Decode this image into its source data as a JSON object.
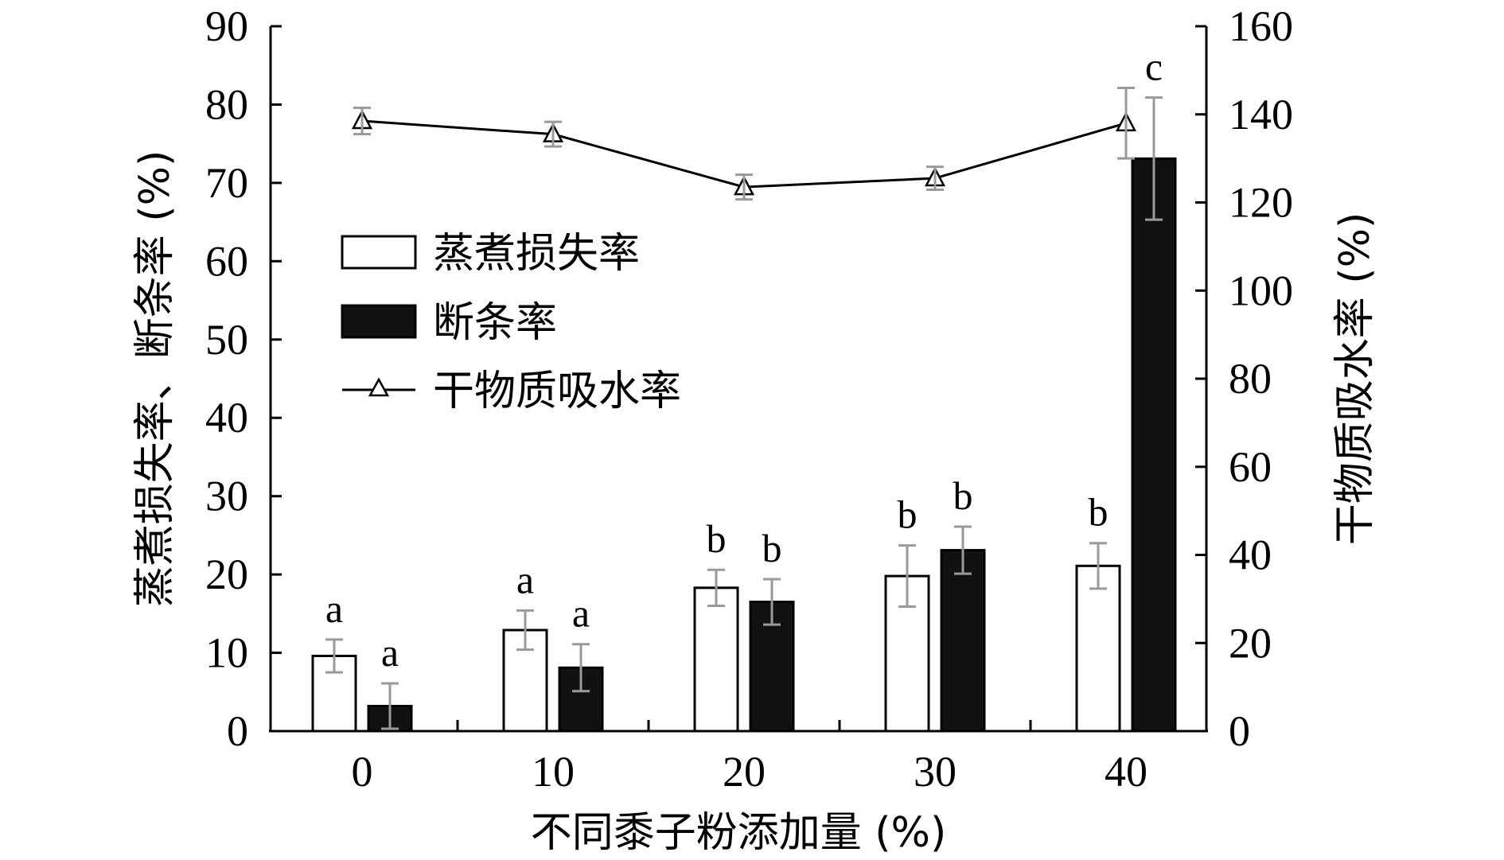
{
  "chart_data": {
    "type": "bar",
    "categories": [
      "0",
      "10",
      "20",
      "30",
      "40"
    ],
    "xlabel": "不同黍子粉添加量 (%)",
    "ylabel": "蒸煮损失率、断条率 (%)",
    "y2label": "干物质吸水率 (%)",
    "ylim": [
      0,
      90
    ],
    "y2lim": [
      0,
      160
    ],
    "yticks": [
      "0",
      "10",
      "20",
      "30",
      "40",
      "50",
      "60",
      "70",
      "80",
      "90"
    ],
    "y2ticks": [
      "0",
      "20",
      "40",
      "60",
      "80",
      "100",
      "120",
      "140",
      "160"
    ],
    "grid": false,
    "legend_position": "top-left",
    "series": [
      {
        "name": "蒸煮损失率",
        "type": "bar",
        "axis": "left",
        "color": "#ffffff",
        "values": [
          9.6,
          12.9,
          18.3,
          19.8,
          21.1
        ],
        "errors": [
          2.1,
          2.5,
          2.3,
          3.9,
          2.9
        ],
        "labels": [
          "a",
          "a",
          "b",
          "b",
          "b"
        ]
      },
      {
        "name": "断条率",
        "type": "bar",
        "axis": "left",
        "color": "#111111",
        "values": [
          3.2,
          8.1,
          16.5,
          23.1,
          73.1
        ],
        "errors": [
          2.9,
          3.0,
          2.9,
          3.0,
          7.8
        ],
        "labels": [
          "a",
          "a",
          "b",
          "b",
          "c"
        ]
      },
      {
        "name": "干物质吸水率",
        "type": "line",
        "axis": "right",
        "marker": "triangle",
        "color": "#111111",
        "values": [
          138.5,
          135.5,
          123.5,
          125.5,
          138.0
        ],
        "errors": [
          3.0,
          2.8,
          2.8,
          2.6,
          8.0
        ]
      }
    ],
    "error_bar_color": "#9a9a9a"
  }
}
